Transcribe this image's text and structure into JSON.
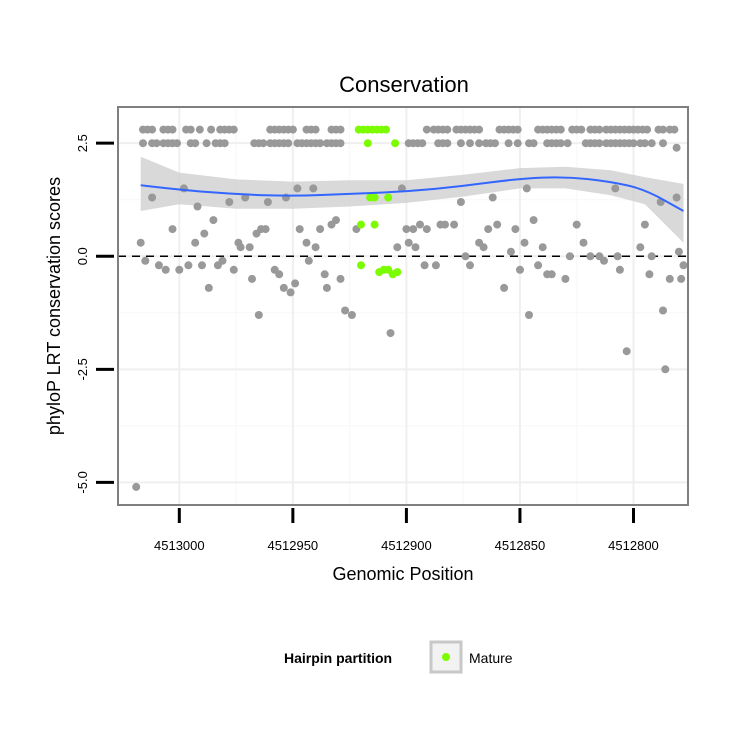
{
  "chart_data": {
    "type": "scatter",
    "title": "Conservation",
    "xlabel": "Genomic Position",
    "ylabel": "phyloP LRT conservation scores",
    "x_reversed": true,
    "xlim": [
      4513027,
      4512776
    ],
    "ylim": [
      -5.5,
      3.3
    ],
    "x_ticks": [
      {
        "value": 4513000,
        "label": "4513000"
      },
      {
        "value": 4512950,
        "label": "4512950"
      },
      {
        "value": 4512900,
        "label": "4512900"
      },
      {
        "value": 4512850,
        "label": "4512850"
      },
      {
        "value": 4512800,
        "label": "4512800"
      }
    ],
    "y_ticks": [
      {
        "value": 2.5,
        "label": "2.5"
      },
      {
        "value": 0,
        "label": "0.0"
      },
      {
        "value": -2.5,
        "label": "-2.5"
      },
      {
        "value": -5,
        "label": "-5.0"
      }
    ],
    "reference_line": {
      "y": 0,
      "style": "dashed"
    },
    "grid": true,
    "legend": {
      "title": "Hairpin partition",
      "position": "bottom",
      "entries": [
        {
          "label": "Mature",
          "color": "#7cfc00"
        }
      ]
    },
    "colors": {
      "other": "#999999",
      "mature": "#7cfc00",
      "smooth": "#3366ff",
      "band": "#cccccc",
      "panel_border": "#7f7f7f"
    },
    "series": [
      {
        "partition": "other",
        "points": [
          [
            4513016,
            2.8
          ],
          [
            4513014,
            2.8
          ],
          [
            4513012,
            2.8
          ],
          [
            4513016,
            2.5
          ],
          [
            4513012,
            2.5
          ],
          [
            4513010,
            2.5
          ],
          [
            4513007,
            2.8
          ],
          [
            4513005,
            2.8
          ],
          [
            4513003,
            2.8
          ],
          [
            4513007,
            2.5
          ],
          [
            4513005,
            2.5
          ],
          [
            4513003,
            2.5
          ],
          [
            4513001,
            2.5
          ],
          [
            4512997,
            2.8
          ],
          [
            4512995,
            2.8
          ],
          [
            4512995,
            2.5
          ],
          [
            4512993,
            2.5
          ],
          [
            4512991,
            2.8
          ],
          [
            4512988,
            2.5
          ],
          [
            4512986,
            2.8
          ],
          [
            4512984,
            2.5
          ],
          [
            4512982,
            2.8
          ],
          [
            4512980,
            2.8
          ],
          [
            4512978,
            2.8
          ],
          [
            4512976,
            2.8
          ],
          [
            4512982,
            2.5
          ],
          [
            4512980,
            2.5
          ],
          [
            4512967,
            2.5
          ],
          [
            4512965,
            2.5
          ],
          [
            4512963,
            2.5
          ],
          [
            4512960,
            2.8
          ],
          [
            4512958,
            2.8
          ],
          [
            4512956,
            2.8
          ],
          [
            4512954,
            2.8
          ],
          [
            4512952,
            2.8
          ],
          [
            4512960,
            2.5
          ],
          [
            4512958,
            2.5
          ],
          [
            4512956,
            2.5
          ],
          [
            4512954,
            2.5
          ],
          [
            4512952,
            2.5
          ],
          [
            4512950,
            2.8
          ],
          [
            4512948,
            2.5
          ],
          [
            4512946,
            2.5
          ],
          [
            4512944,
            2.8
          ],
          [
            4512942,
            2.8
          ],
          [
            4512940,
            2.8
          ],
          [
            4512944,
            2.5
          ],
          [
            4512942,
            2.5
          ],
          [
            4512940,
            2.5
          ],
          [
            4512938,
            2.5
          ],
          [
            4512935,
            2.5
          ],
          [
            4512933,
            2.8
          ],
          [
            4512931,
            2.8
          ],
          [
            4512929,
            2.8
          ],
          [
            4512933,
            2.5
          ],
          [
            4512931,
            2.5
          ],
          [
            4512929,
            2.5
          ],
          [
            4512899,
            2.5
          ],
          [
            4512897,
            2.5
          ],
          [
            4512895,
            2.5
          ],
          [
            4512893,
            2.5
          ],
          [
            4512891,
            2.8
          ],
          [
            4512888,
            2.8
          ],
          [
            4512886,
            2.8
          ],
          [
            4512884,
            2.8
          ],
          [
            4512882,
            2.8
          ],
          [
            4512886,
            2.5
          ],
          [
            4512884,
            2.5
          ],
          [
            4512882,
            2.5
          ],
          [
            4512878,
            2.8
          ],
          [
            4512876,
            2.8
          ],
          [
            4512874,
            2.8
          ],
          [
            4512872,
            2.8
          ],
          [
            4512870,
            2.8
          ],
          [
            4512868,
            2.8
          ],
          [
            4512876,
            2.5
          ],
          [
            4512872,
            2.5
          ],
          [
            4512868,
            2.5
          ],
          [
            4512865,
            2.5
          ],
          [
            4512863,
            2.5
          ],
          [
            4512861,
            2.5
          ],
          [
            4512859,
            2.8
          ],
          [
            4512857,
            2.8
          ],
          [
            4512855,
            2.8
          ],
          [
            4512853,
            2.8
          ],
          [
            4512851,
            2.8
          ],
          [
            4512855,
            2.5
          ],
          [
            4512851,
            2.5
          ],
          [
            4512846,
            2.5
          ],
          [
            4512844,
            2.5
          ],
          [
            4512842,
            2.8
          ],
          [
            4512840,
            2.8
          ],
          [
            4512838,
            2.8
          ],
          [
            4512836,
            2.8
          ],
          [
            4512834,
            2.8
          ],
          [
            4512832,
            2.8
          ],
          [
            4512838,
            2.5
          ],
          [
            4512836,
            2.5
          ],
          [
            4512834,
            2.5
          ],
          [
            4512832,
            2.5
          ],
          [
            4512829,
            2.5
          ],
          [
            4512827,
            2.8
          ],
          [
            4512825,
            2.8
          ],
          [
            4512823,
            2.8
          ],
          [
            4512819,
            2.8
          ],
          [
            4512817,
            2.8
          ],
          [
            4512815,
            2.8
          ],
          [
            4512821,
            2.5
          ],
          [
            4512819,
            2.5
          ],
          [
            4512817,
            2.5
          ],
          [
            4512815,
            2.5
          ],
          [
            4512812,
            2.8
          ],
          [
            4512810,
            2.8
          ],
          [
            4512808,
            2.8
          ],
          [
            4512806,
            2.8
          ],
          [
            4512804,
            2.8
          ],
          [
            4512812,
            2.5
          ],
          [
            4512810,
            2.5
          ],
          [
            4512808,
            2.5
          ],
          [
            4512806,
            2.5
          ],
          [
            4512804,
            2.5
          ],
          [
            4512802,
            2.8
          ],
          [
            4512800,
            2.8
          ],
          [
            4512798,
            2.8
          ],
          [
            4512796,
            2.8
          ],
          [
            4512794,
            2.8
          ],
          [
            4512802,
            2.5
          ],
          [
            4512800,
            2.5
          ],
          [
            4512797,
            2.5
          ],
          [
            4512795,
            2.5
          ],
          [
            4512792,
            2.5
          ],
          [
            4512789,
            2.8
          ],
          [
            4512787,
            2.8
          ],
          [
            4512787,
            2.5
          ],
          [
            4512784,
            2.8
          ],
          [
            4512782,
            2.8
          ],
          [
            4512781,
            2.4
          ],
          [
            4513017,
            0.3
          ],
          [
            4513015,
            -0.1
          ],
          [
            4513012,
            1.3
          ],
          [
            4513009,
            -0.2
          ],
          [
            4513006,
            -0.3
          ],
          [
            4513003,
            0.6
          ],
          [
            4513000,
            -0.3
          ],
          [
            4512998,
            1.5
          ],
          [
            4512996,
            -0.2
          ],
          [
            4512993,
            0.3
          ],
          [
            4512992,
            1.1
          ],
          [
            4512990,
            -0.2
          ],
          [
            4512989,
            0.5
          ],
          [
            4512987,
            -0.7
          ],
          [
            4512985,
            0.8
          ],
          [
            4512983,
            -0.2
          ],
          [
            4512981,
            -0.1
          ],
          [
            4512978,
            1.2
          ],
          [
            4512976,
            -0.3
          ],
          [
            4512974,
            0.3
          ],
          [
            4512973,
            0.2
          ],
          [
            4512971,
            1.3
          ],
          [
            4512969,
            0.2
          ],
          [
            4512968,
            -0.5
          ],
          [
            4512966,
            0.5
          ],
          [
            4512965,
            -1.3
          ],
          [
            4512964,
            0.6
          ],
          [
            4512962,
            0.6
          ],
          [
            4512961,
            1.2
          ],
          [
            4512958,
            -0.3
          ],
          [
            4512956,
            -0.4
          ],
          [
            4512954,
            -0.7
          ],
          [
            4512953,
            1.3
          ],
          [
            4512951,
            -0.8
          ],
          [
            4512949,
            -0.6
          ],
          [
            4512948,
            1.5
          ],
          [
            4512947,
            0.6
          ],
          [
            4512944,
            0.3
          ],
          [
            4512943,
            -0.1
          ],
          [
            4512941,
            1.5
          ],
          [
            4512940,
            0.2
          ],
          [
            4512938,
            0.6
          ],
          [
            4512936,
            -0.4
          ],
          [
            4512935,
            -0.7
          ],
          [
            4512933,
            0.7
          ],
          [
            4512931,
            0.8
          ],
          [
            4512929,
            -0.5
          ],
          [
            4512927,
            -1.2
          ],
          [
            4512924,
            -1.3
          ],
          [
            4512922,
            0.6
          ],
          [
            4512907,
            -1.7
          ],
          [
            4512904,
            0.2
          ],
          [
            4512902,
            1.5
          ],
          [
            4512900,
            0.6
          ],
          [
            4512899,
            0.3
          ],
          [
            4512897,
            0.6
          ],
          [
            4512896,
            0.2
          ],
          [
            4512894,
            0.7
          ],
          [
            4512892,
            -0.2
          ],
          [
            4512891,
            0.6
          ],
          [
            4512887,
            -0.2
          ],
          [
            4512885,
            0.7
          ],
          [
            4512883,
            0.7
          ],
          [
            4512879,
            0.7
          ],
          [
            4512876,
            1.2
          ],
          [
            4512874,
            0.0
          ],
          [
            4512872,
            -0.2
          ],
          [
            4512868,
            0.3
          ],
          [
            4512866,
            0.2
          ],
          [
            4512864,
            0.6
          ],
          [
            4512862,
            1.3
          ],
          [
            4512860,
            0.7
          ],
          [
            4512857,
            -0.7
          ],
          [
            4512854,
            0.1
          ],
          [
            4512852,
            0.6
          ],
          [
            4512850,
            -0.3
          ],
          [
            4512848,
            0.3
          ],
          [
            4512847,
            1.5
          ],
          [
            4512846,
            -1.3
          ],
          [
            4512844,
            0.8
          ],
          [
            4512842,
            -0.2
          ],
          [
            4512840,
            0.2
          ],
          [
            4512838,
            -0.4
          ],
          [
            4512836,
            -0.4
          ],
          [
            4512830,
            -0.5
          ],
          [
            4512828,
            0.0
          ],
          [
            4512825,
            0.7
          ],
          [
            4512822,
            0.3
          ],
          [
            4512819,
            0.0
          ],
          [
            4512815,
            0.0
          ],
          [
            4512813,
            -0.1
          ],
          [
            4512808,
            1.5
          ],
          [
            4512807,
            0.0
          ],
          [
            4512806,
            -0.3
          ],
          [
            4512803,
            -2.1
          ],
          [
            4512797,
            0.2
          ],
          [
            4512795,
            0.7
          ],
          [
            4512793,
            -0.4
          ],
          [
            4512792,
            0.0
          ],
          [
            4512788,
            1.2
          ],
          [
            4512787,
            -1.2
          ],
          [
            4512786,
            -2.5
          ],
          [
            4512784,
            -0.5
          ],
          [
            4512781,
            1.3
          ],
          [
            4512780,
            0.1
          ],
          [
            4512779,
            -0.5
          ],
          [
            4512778,
            -0.2
          ],
          [
            4513019,
            -5.1
          ]
        ]
      },
      {
        "partition": "Mature",
        "points": [
          [
            4512921,
            2.8
          ],
          [
            4512919,
            2.8
          ],
          [
            4512917,
            2.8
          ],
          [
            4512915,
            2.8
          ],
          [
            4512913,
            2.8
          ],
          [
            4512911,
            2.8
          ],
          [
            4512909,
            2.8
          ],
          [
            4512917,
            2.5
          ],
          [
            4512905,
            2.5
          ],
          [
            4512916,
            1.3
          ],
          [
            4512914,
            1.3
          ],
          [
            4512920,
            0.7
          ],
          [
            4512914,
            0.7
          ],
          [
            4512908,
            1.3
          ],
          [
            4512910,
            -0.3
          ],
          [
            4512912,
            -0.35
          ],
          [
            4512908,
            -0.3
          ],
          [
            4512906,
            -0.4
          ],
          [
            4512904,
            -0.35
          ],
          [
            4512920,
            -0.2
          ]
        ]
      }
    ],
    "smooth": {
      "method": "loess",
      "points": [
        [
          4513017,
          1.57
        ],
        [
          4513000,
          1.47
        ],
        [
          4512975,
          1.37
        ],
        [
          4512950,
          1.33
        ],
        [
          4512925,
          1.38
        ],
        [
          4512900,
          1.43
        ],
        [
          4512875,
          1.55
        ],
        [
          4512850,
          1.72
        ],
        [
          4512830,
          1.76
        ],
        [
          4512810,
          1.65
        ],
        [
          4512795,
          1.48
        ],
        [
          4512778,
          1.0
        ]
      ],
      "band": [
        [
          4513017,
          2.2,
          1.0
        ],
        [
          4513000,
          1.85,
          1.15
        ],
        [
          4512975,
          1.7,
          1.05
        ],
        [
          4512950,
          1.65,
          1.05
        ],
        [
          4512925,
          1.68,
          1.1
        ],
        [
          4512900,
          1.68,
          1.18
        ],
        [
          4512875,
          1.8,
          1.32
        ],
        [
          4512850,
          1.95,
          1.5
        ],
        [
          4512830,
          1.98,
          1.5
        ],
        [
          4512810,
          1.9,
          1.35
        ],
        [
          4512795,
          1.75,
          1.15
        ],
        [
          4512778,
          1.6,
          0.3
        ]
      ]
    }
  }
}
